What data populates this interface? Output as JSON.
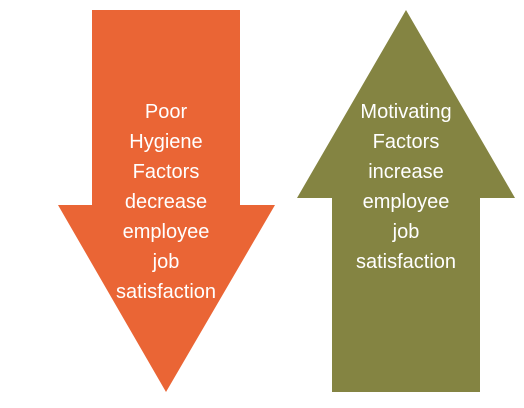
{
  "arrows": [
    {
      "id": "down",
      "direction": "down",
      "color": "#ea6535",
      "text": "Poor\nHygiene\nFactors\ndecrease\nemployee\njob\nsatisfaction"
    },
    {
      "id": "up",
      "direction": "up",
      "color": "#848442",
      "text": "Motivating\nFactors\nincrease\nemployee\njob\nsatisfaction"
    }
  ]
}
